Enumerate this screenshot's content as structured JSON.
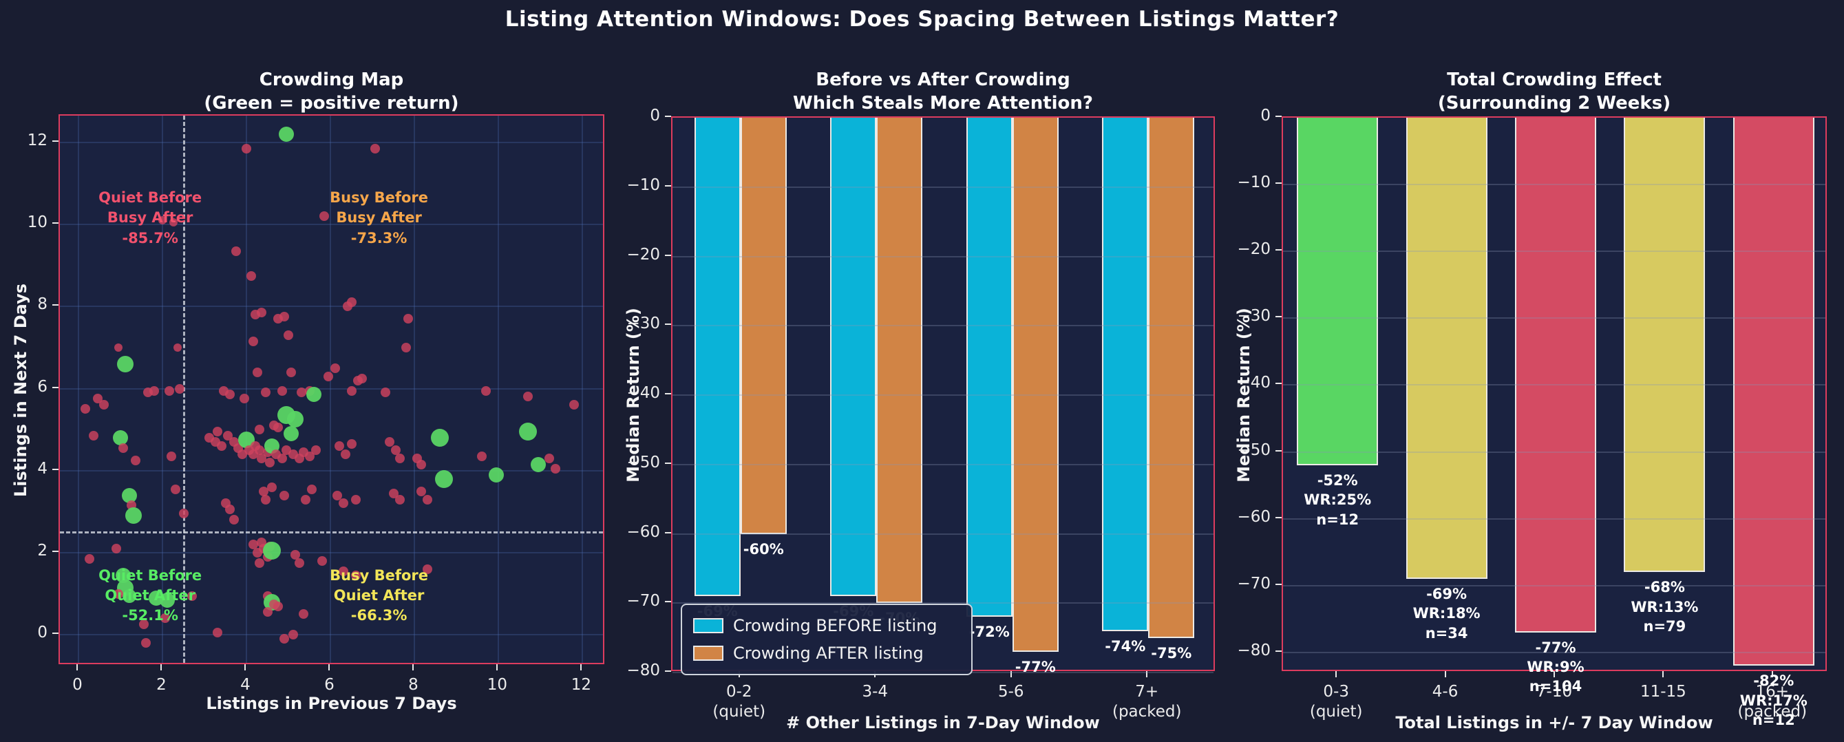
{
  "figure_title": "Listing Attention Windows: Does Spacing Between Listings Matter?",
  "colors": {
    "background": "#191d31",
    "panel_background": "#1a2240",
    "spine": "#dd3c5e",
    "grid_scatter": "rgba(80,110,180,0.28)",
    "grid_bars": "rgba(135,150,180,0.30)",
    "dashed_line": "#c9ced8",
    "before_bar": "#0ab3d8",
    "after_bar": "#d18445",
    "green_bar": "#59d663",
    "yellow_bar": "#d7ca60",
    "red_bar": "#d44b63",
    "dot_red": "rgba(206,66,94,0.82)",
    "dot_green": "rgba(90,213,100,0.95)"
  },
  "chart_data": [
    {
      "type": "scatter",
      "title_line1": "Crowding Map",
      "title_line2": "(Green = positive return)",
      "xlabel": "Listings in Previous 7 Days",
      "ylabel": "Listings in Next 7 Days",
      "xlim": [
        -0.45,
        12.55
      ],
      "ylim": [
        -0.75,
        12.65
      ],
      "xticks": [
        0,
        2,
        4,
        6,
        8,
        10,
        12
      ],
      "yticks": [
        0,
        2,
        4,
        6,
        8,
        10,
        12
      ],
      "vline_x": 2.5,
      "hline_y": 2.5,
      "legend_note": "green = positive return, red = negative return",
      "quadrants": [
        {
          "lines": [
            "Quiet Before",
            "Busy After",
            "-85.7%"
          ],
          "color": "#f2526d",
          "x": 1.7,
          "y": 10.15
        },
        {
          "lines": [
            "Busy Before",
            "Busy After",
            "-73.3%"
          ],
          "color": "#f6a64a",
          "x": 7.15,
          "y": 10.15
        },
        {
          "lines": [
            "Quiet Before",
            "Quiet After",
            "-52.1%"
          ],
          "color": "#58ec64",
          "x": 1.7,
          "y": 0.95
        },
        {
          "lines": [
            "Busy Before",
            "Quiet After",
            "-66.3%"
          ],
          "color": "#f2e558",
          "x": 7.15,
          "y": 0.95
        }
      ],
      "points": [
        [
          4.95,
          12.2,
          "g",
          11
        ],
        [
          4.0,
          11.85,
          "r"
        ],
        [
          7.05,
          11.85,
          "r"
        ],
        [
          5.85,
          10.2,
          "r"
        ],
        [
          2.0,
          10.1,
          "r",
          6
        ],
        [
          2.25,
          10.05,
          "r",
          6
        ],
        [
          3.75,
          9.35,
          "r"
        ],
        [
          4.1,
          8.75,
          "r"
        ],
        [
          6.4,
          8.0,
          "r"
        ],
        [
          6.5,
          8.1,
          "r"
        ],
        [
          7.85,
          7.7,
          "r"
        ],
        [
          4.2,
          7.8,
          "r"
        ],
        [
          4.35,
          7.85,
          "r"
        ],
        [
          4.75,
          7.7,
          "r"
        ],
        [
          4.9,
          7.75,
          "r"
        ],
        [
          5.0,
          7.3,
          "r"
        ],
        [
          4.15,
          7.15,
          "r"
        ],
        [
          7.8,
          7.0,
          "r"
        ],
        [
          0.95,
          7.0,
          "r",
          6
        ],
        [
          2.35,
          7.0,
          "r",
          6
        ],
        [
          4.25,
          6.4,
          "r"
        ],
        [
          5.05,
          6.4,
          "r"
        ],
        [
          6.1,
          6.5,
          "r"
        ],
        [
          5.95,
          6.3,
          "r"
        ],
        [
          6.65,
          6.2,
          "r"
        ],
        [
          6.75,
          6.25,
          "r"
        ],
        [
          4.85,
          5.95,
          "r"
        ],
        [
          3.95,
          5.75,
          "r"
        ],
        [
          1.1,
          6.6,
          "g",
          12
        ],
        [
          2.15,
          5.95,
          "r"
        ],
        [
          2.4,
          6.0,
          "r"
        ],
        [
          0.45,
          5.75,
          "r"
        ],
        [
          0.6,
          5.6,
          "r"
        ],
        [
          1.65,
          5.9,
          "r"
        ],
        [
          1.8,
          5.95,
          "r"
        ],
        [
          3.45,
          5.95,
          "r"
        ],
        [
          3.6,
          5.85,
          "r"
        ],
        [
          4.45,
          5.9,
          "r"
        ],
        [
          5.3,
          5.9,
          "r"
        ],
        [
          5.5,
          5.95,
          "r"
        ],
        [
          5.6,
          5.85,
          "g",
          11
        ],
        [
          6.5,
          5.95,
          "r"
        ],
        [
          7.3,
          5.9,
          "r"
        ],
        [
          9.7,
          5.95,
          "r"
        ],
        [
          10.7,
          5.8,
          "r"
        ],
        [
          11.8,
          5.6,
          "r"
        ],
        [
          0.15,
          5.5,
          "r"
        ],
        [
          0.35,
          4.85,
          "r"
        ],
        [
          1.0,
          4.8,
          "g",
          11
        ],
        [
          1.05,
          4.55,
          "r"
        ],
        [
          1.35,
          4.25,
          "r"
        ],
        [
          2.2,
          4.35,
          "r"
        ],
        [
          3.1,
          4.8,
          "r"
        ],
        [
          3.25,
          4.7,
          "r"
        ],
        [
          3.4,
          4.6,
          "r"
        ],
        [
          3.55,
          4.85,
          "r"
        ],
        [
          3.7,
          4.7,
          "r"
        ],
        [
          3.8,
          4.55,
          "r"
        ],
        [
          3.9,
          4.4,
          "r"
        ],
        [
          4.0,
          4.75,
          "g",
          12
        ],
        [
          4.05,
          4.5,
          "r"
        ],
        [
          4.15,
          4.4,
          "r"
        ],
        [
          4.2,
          4.6,
          "r"
        ],
        [
          4.3,
          4.5,
          "r"
        ],
        [
          4.35,
          4.3,
          "r"
        ],
        [
          4.5,
          4.45,
          "r"
        ],
        [
          4.55,
          4.2,
          "r"
        ],
        [
          4.6,
          4.6,
          "g",
          11
        ],
        [
          4.7,
          4.4,
          "r"
        ],
        [
          4.85,
          4.3,
          "r"
        ],
        [
          4.95,
          4.5,
          "r"
        ],
        [
          5.05,
          4.9,
          "g",
          11
        ],
        [
          5.1,
          4.4,
          "r"
        ],
        [
          5.25,
          4.3,
          "r"
        ],
        [
          5.35,
          4.45,
          "r"
        ],
        [
          5.5,
          4.35,
          "r"
        ],
        [
          5.65,
          4.5,
          "r"
        ],
        [
          6.2,
          4.6,
          "r"
        ],
        [
          6.35,
          4.4,
          "r"
        ],
        [
          6.5,
          4.65,
          "r"
        ],
        [
          7.4,
          4.7,
          "r"
        ],
        [
          7.55,
          4.5,
          "r"
        ],
        [
          7.65,
          4.3,
          "r"
        ],
        [
          8.05,
          4.3,
          "r"
        ],
        [
          8.15,
          4.15,
          "r"
        ],
        [
          8.6,
          4.8,
          "g",
          13
        ],
        [
          9.6,
          4.35,
          "r"
        ],
        [
          10.7,
          4.95,
          "g",
          13
        ],
        [
          10.95,
          4.15,
          "g",
          11
        ],
        [
          11.2,
          4.3,
          "r"
        ],
        [
          11.35,
          4.05,
          "r"
        ],
        [
          4.95,
          5.35,
          "g",
          13
        ],
        [
          4.65,
          5.1,
          "r"
        ],
        [
          4.75,
          5.05,
          "r"
        ],
        [
          5.15,
          5.25,
          "g",
          12
        ],
        [
          4.3,
          5.0,
          "r"
        ],
        [
          3.3,
          4.95,
          "r"
        ],
        [
          1.2,
          3.4,
          "g",
          11
        ],
        [
          1.25,
          3.15,
          "r"
        ],
        [
          1.3,
          2.9,
          "g",
          12
        ],
        [
          2.3,
          3.55,
          "r"
        ],
        [
          2.5,
          2.95,
          "r"
        ],
        [
          3.5,
          3.2,
          "r"
        ],
        [
          3.6,
          3.05,
          "r"
        ],
        [
          3.7,
          2.8,
          "r"
        ],
        [
          4.4,
          3.5,
          "r"
        ],
        [
          4.45,
          3.3,
          "r"
        ],
        [
          4.6,
          3.6,
          "r"
        ],
        [
          4.9,
          3.4,
          "r"
        ],
        [
          5.4,
          3.3,
          "r"
        ],
        [
          5.55,
          3.55,
          "r"
        ],
        [
          6.15,
          3.4,
          "r"
        ],
        [
          6.3,
          3.2,
          "r"
        ],
        [
          6.6,
          3.3,
          "r"
        ],
        [
          7.5,
          3.45,
          "r"
        ],
        [
          7.65,
          3.3,
          "r"
        ],
        [
          8.15,
          3.5,
          "r"
        ],
        [
          8.7,
          3.8,
          "g",
          13
        ],
        [
          9.95,
          3.9,
          "g",
          11
        ],
        [
          8.3,
          3.3,
          "r"
        ],
        [
          0.9,
          2.1,
          "r"
        ],
        [
          0.25,
          1.85,
          "r"
        ],
        [
          1.05,
          1.45,
          "g",
          11
        ],
        [
          1.1,
          1.15,
          "g",
          12
        ],
        [
          1.2,
          0.95,
          "g",
          10
        ],
        [
          1.85,
          0.9,
          "g",
          11
        ],
        [
          2.1,
          0.85,
          "g",
          11
        ],
        [
          0.95,
          1.0,
          "r"
        ],
        [
          2.7,
          0.95,
          "r"
        ],
        [
          2.05,
          0.4,
          "r"
        ],
        [
          4.15,
          2.2,
          "r"
        ],
        [
          4.25,
          2.0,
          "r"
        ],
        [
          4.35,
          2.25,
          "r"
        ],
        [
          4.4,
          2.1,
          "r"
        ],
        [
          4.5,
          1.9,
          "r"
        ],
        [
          4.55,
          2.15,
          "r"
        ],
        [
          4.6,
          2.05,
          "g",
          13
        ],
        [
          4.3,
          1.75,
          "r"
        ],
        [
          5.15,
          1.95,
          "r"
        ],
        [
          5.25,
          1.75,
          "r"
        ],
        [
          5.8,
          1.8,
          "r"
        ],
        [
          6.3,
          1.55,
          "r"
        ],
        [
          6.6,
          1.45,
          "r"
        ],
        [
          8.3,
          1.6,
          "r"
        ],
        [
          4.5,
          0.95,
          "r"
        ],
        [
          4.6,
          0.8,
          "g",
          12
        ],
        [
          4.65,
          0.75,
          "r"
        ],
        [
          4.75,
          0.7,
          "r"
        ],
        [
          4.5,
          0.55,
          "r"
        ],
        [
          5.35,
          0.5,
          "r"
        ],
        [
          4.9,
          -0.1,
          "r"
        ],
        [
          3.3,
          0.05,
          "r"
        ],
        [
          1.55,
          0.25,
          "r"
        ],
        [
          1.6,
          -0.2,
          "r"
        ],
        [
          5.1,
          0.0,
          "r"
        ]
      ]
    },
    {
      "type": "bar",
      "title_line1": "Before vs After Crowding",
      "title_line2": "Which Steals More Attention?",
      "xlabel": "# Other Listings in 7-Day Window",
      "ylabel": "Median Return (%)",
      "ylim": [
        -80,
        0
      ],
      "yticks": [
        0,
        -10,
        -20,
        -30,
        -40,
        -50,
        -60,
        -70,
        -80
      ],
      "categories": [
        [
          "0-2",
          "(quiet)"
        ],
        [
          "3-4",
          ""
        ],
        [
          "5-6",
          ""
        ],
        [
          "7+",
          "(packed)"
        ]
      ],
      "series": [
        {
          "name": "Crowding BEFORE listing",
          "color": "#0ab3d8",
          "values": [
            -69,
            -69,
            -72,
            -74
          ],
          "labels": [
            "-69%",
            "-69%",
            "-72%",
            "-74%"
          ]
        },
        {
          "name": "Crowding AFTER listing",
          "color": "#d18445",
          "values": [
            -60,
            -70,
            -77,
            -75
          ],
          "labels": [
            "-60%",
            "-70%",
            "-77%",
            "-75%"
          ]
        }
      ],
      "legend_position": "lower left"
    },
    {
      "type": "bar",
      "title_line1": "Total Crowding Effect",
      "title_line2": "(Surrounding 2 Weeks)",
      "xlabel": "Total Listings in +/- 7 Day Window",
      "ylabel": "Median Return (%)",
      "ylim": [
        -83,
        0
      ],
      "yticks": [
        0,
        -10,
        -20,
        -30,
        -40,
        -50,
        -60,
        -70,
        -80
      ],
      "categories": [
        [
          "0-3",
          "(quiet)"
        ],
        [
          "4-6",
          ""
        ],
        [
          "7-10",
          ""
        ],
        [
          "11-15",
          ""
        ],
        [
          "16+",
          "(packed)"
        ]
      ],
      "values": [
        -52,
        -69,
        -77,
        -68,
        -82
      ],
      "bar_colors": [
        "#59d663",
        "#d7ca60",
        "#d44b63",
        "#d7ca60",
        "#d44b63"
      ],
      "labels": [
        [
          "-52%",
          "WR:25%",
          "n=12"
        ],
        [
          "-69%",
          "WR:18%",
          "n=34"
        ],
        [
          "-77%",
          "WR:9%",
          "n=104"
        ],
        [
          "-68%",
          "WR:13%",
          "n=79"
        ],
        [
          "-82%",
          "WR:17%",
          "n=12"
        ]
      ]
    }
  ]
}
